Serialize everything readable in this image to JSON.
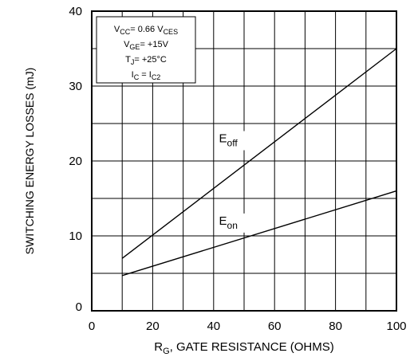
{
  "chart_data": {
    "type": "line",
    "xlabel": {
      "main": "R",
      "sub": "G",
      "rest": ", GATE RESISTANCE (OHMS)"
    },
    "ylabel": "SWITCHING ENERGY LOSSES (mJ)",
    "xlim": [
      0,
      100
    ],
    "ylim": [
      0,
      40
    ],
    "xticks": [
      0,
      20,
      40,
      60,
      80,
      100
    ],
    "yticks": [
      0,
      10,
      20,
      30,
      40
    ],
    "grid": true,
    "conditions": [
      [
        {
          "t": "V"
        },
        {
          "t": "CC",
          "sub": true
        },
        {
          "t": "= 0.66 V"
        },
        {
          "t": "CES",
          "sub": true
        }
      ],
      [
        {
          "t": "V"
        },
        {
          "t": "GE",
          "sub": true
        },
        {
          "t": "= +15V"
        }
      ],
      [
        {
          "t": "T"
        },
        {
          "t": "J",
          "sub": true
        },
        {
          "t": "= +25°C"
        }
      ],
      [
        {
          "t": "I"
        },
        {
          "t": "C",
          "sub": true
        },
        {
          "t": " = I"
        },
        {
          "t": "C2",
          "sub": true
        }
      ]
    ],
    "series": [
      {
        "name": "E_off",
        "label_main": "E",
        "label_sub": "off",
        "x": [
          10,
          100
        ],
        "y": [
          7,
          35
        ],
        "label_at": [
          47,
          22.5
        ]
      },
      {
        "name": "E_on",
        "label_main": "E",
        "label_sub": "on",
        "x": [
          10,
          100
        ],
        "y": [
          4.7,
          16
        ],
        "label_at": [
          47,
          11.5
        ]
      }
    ]
  }
}
